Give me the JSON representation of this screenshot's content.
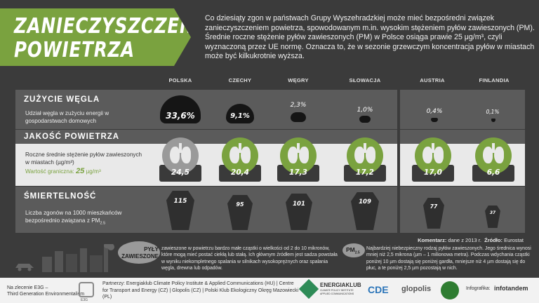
{
  "header": {
    "title_line1": "ZANIECZYSZCZENIE",
    "title_line2": "POWIETRZA",
    "intro": "Co dziesiąty zgon w państwach Grupy Wyszehradzkiej może mieć bezpośredni związek zanieczyszczeniem powietrza, spowodowanym m.in. wysokim stężeniem pyłów zawieszonych (PM). Średnie roczne stężenie pyłów zawieszonych (PM) w Polsce osiąga prawie 25 μg/m³, czyli wyznaczoną przez UE normę. Oznacza to, że w sezonie grzewczym koncentracja pyłów w miastach może być kilkukrotnie wyższa."
  },
  "countries": [
    "POLSKA",
    "CZECHY",
    "WĘGRY",
    "SŁOWACJA",
    "AUSTRIA",
    "FINLANDIA"
  ],
  "coal": {
    "title": "ZUŻYCIE WĘGLA",
    "desc": "Udział węgla w zużyciu energii w gospodarstwach domowych",
    "values": [
      "33,6%",
      "9,1%",
      "2,3%",
      "1,0%",
      "0,4%",
      "0,1%"
    ]
  },
  "air": {
    "title": "JAKOŚĆ POWIETRZA",
    "desc": "Roczne średnie stężenie pyłów zawieszonych w miastach (µg/m³)",
    "limit_label": "Wartość graniczna:",
    "limit_value": "25",
    "limit_unit": "µg/m³",
    "values": [
      "24,5",
      "20,4",
      "17,3",
      "17,2",
      "17,0",
      "6,6"
    ]
  },
  "deaths": {
    "title": "ŚMIERTELNOŚĆ",
    "desc": "Liczba zgonów na 1000 mieszkańców bezpośrednio związana z PM",
    "desc_sub": "2.5",
    "values": [
      "115",
      "95",
      "101",
      "109",
      "77",
      "37"
    ]
  },
  "footnote": {
    "comment_label": "Komentarz:",
    "comment_text": "dane z 2013 r.",
    "source_label": "Źródło:",
    "source_text": "Eurostat"
  },
  "pyly": {
    "label_line1": "PYŁY",
    "label_line2": "ZAWIESZONE",
    "text": "zawieszone w powietrzu bardzo małe cząstki o wielkości od 2 do 10 mikronów, które mogą mieć postać ciekłą lub stałą. Ich głównym źródłem jest sadza powstała w wyniku niekompletnego spalania w silnikach wysokoprężnych oraz spalania węgla, drewna lub odpadów."
  },
  "pm25": {
    "label": "PM",
    "label_sub": "2.5",
    "text": "Najbardziej niebezpieczny rodzaj pyłów zawieszonych. Jego średnica wynosi mniej niż 2,5 mikrona (µm – 1 milionowa metra). Podczas wdychania cząstki poniżej 10 µm dostają się poniżej gardła, mniejsze niż 4 µm dostają się do płuc, a te poniżej 2,5 µm pozostają w nich."
  },
  "footer": {
    "commission_line1": "Na zlecenie E3G –",
    "commission_line2": "Third Generation Environmentalism",
    "e3g": "E3G",
    "partners": "Partnerzy: Energiaklub Climate Policy Institute & Applied Communications (HU) | Centre for Transport and Energy (CZ) | Glopolis (CZ) | Polski Klub Ekologiczny Okręg Mazowiecki (PL)",
    "logo_energiaklub": "ENERGIAKLUB",
    "logo_energiaklub_sub": "CLIMATE POLICY INSTITUTE APPLIED COMMUNICATIONS",
    "logo_cde": "CDE",
    "logo_glopolis": "glopolis",
    "infographic_label": "Infografika:",
    "infographic_brand": "infotandem"
  },
  "colors": {
    "green": "#7aa23f",
    "dark_panel": "#5b5b5b",
    "light_panel": "#e9e9e9",
    "background": "#3b3b3b"
  }
}
